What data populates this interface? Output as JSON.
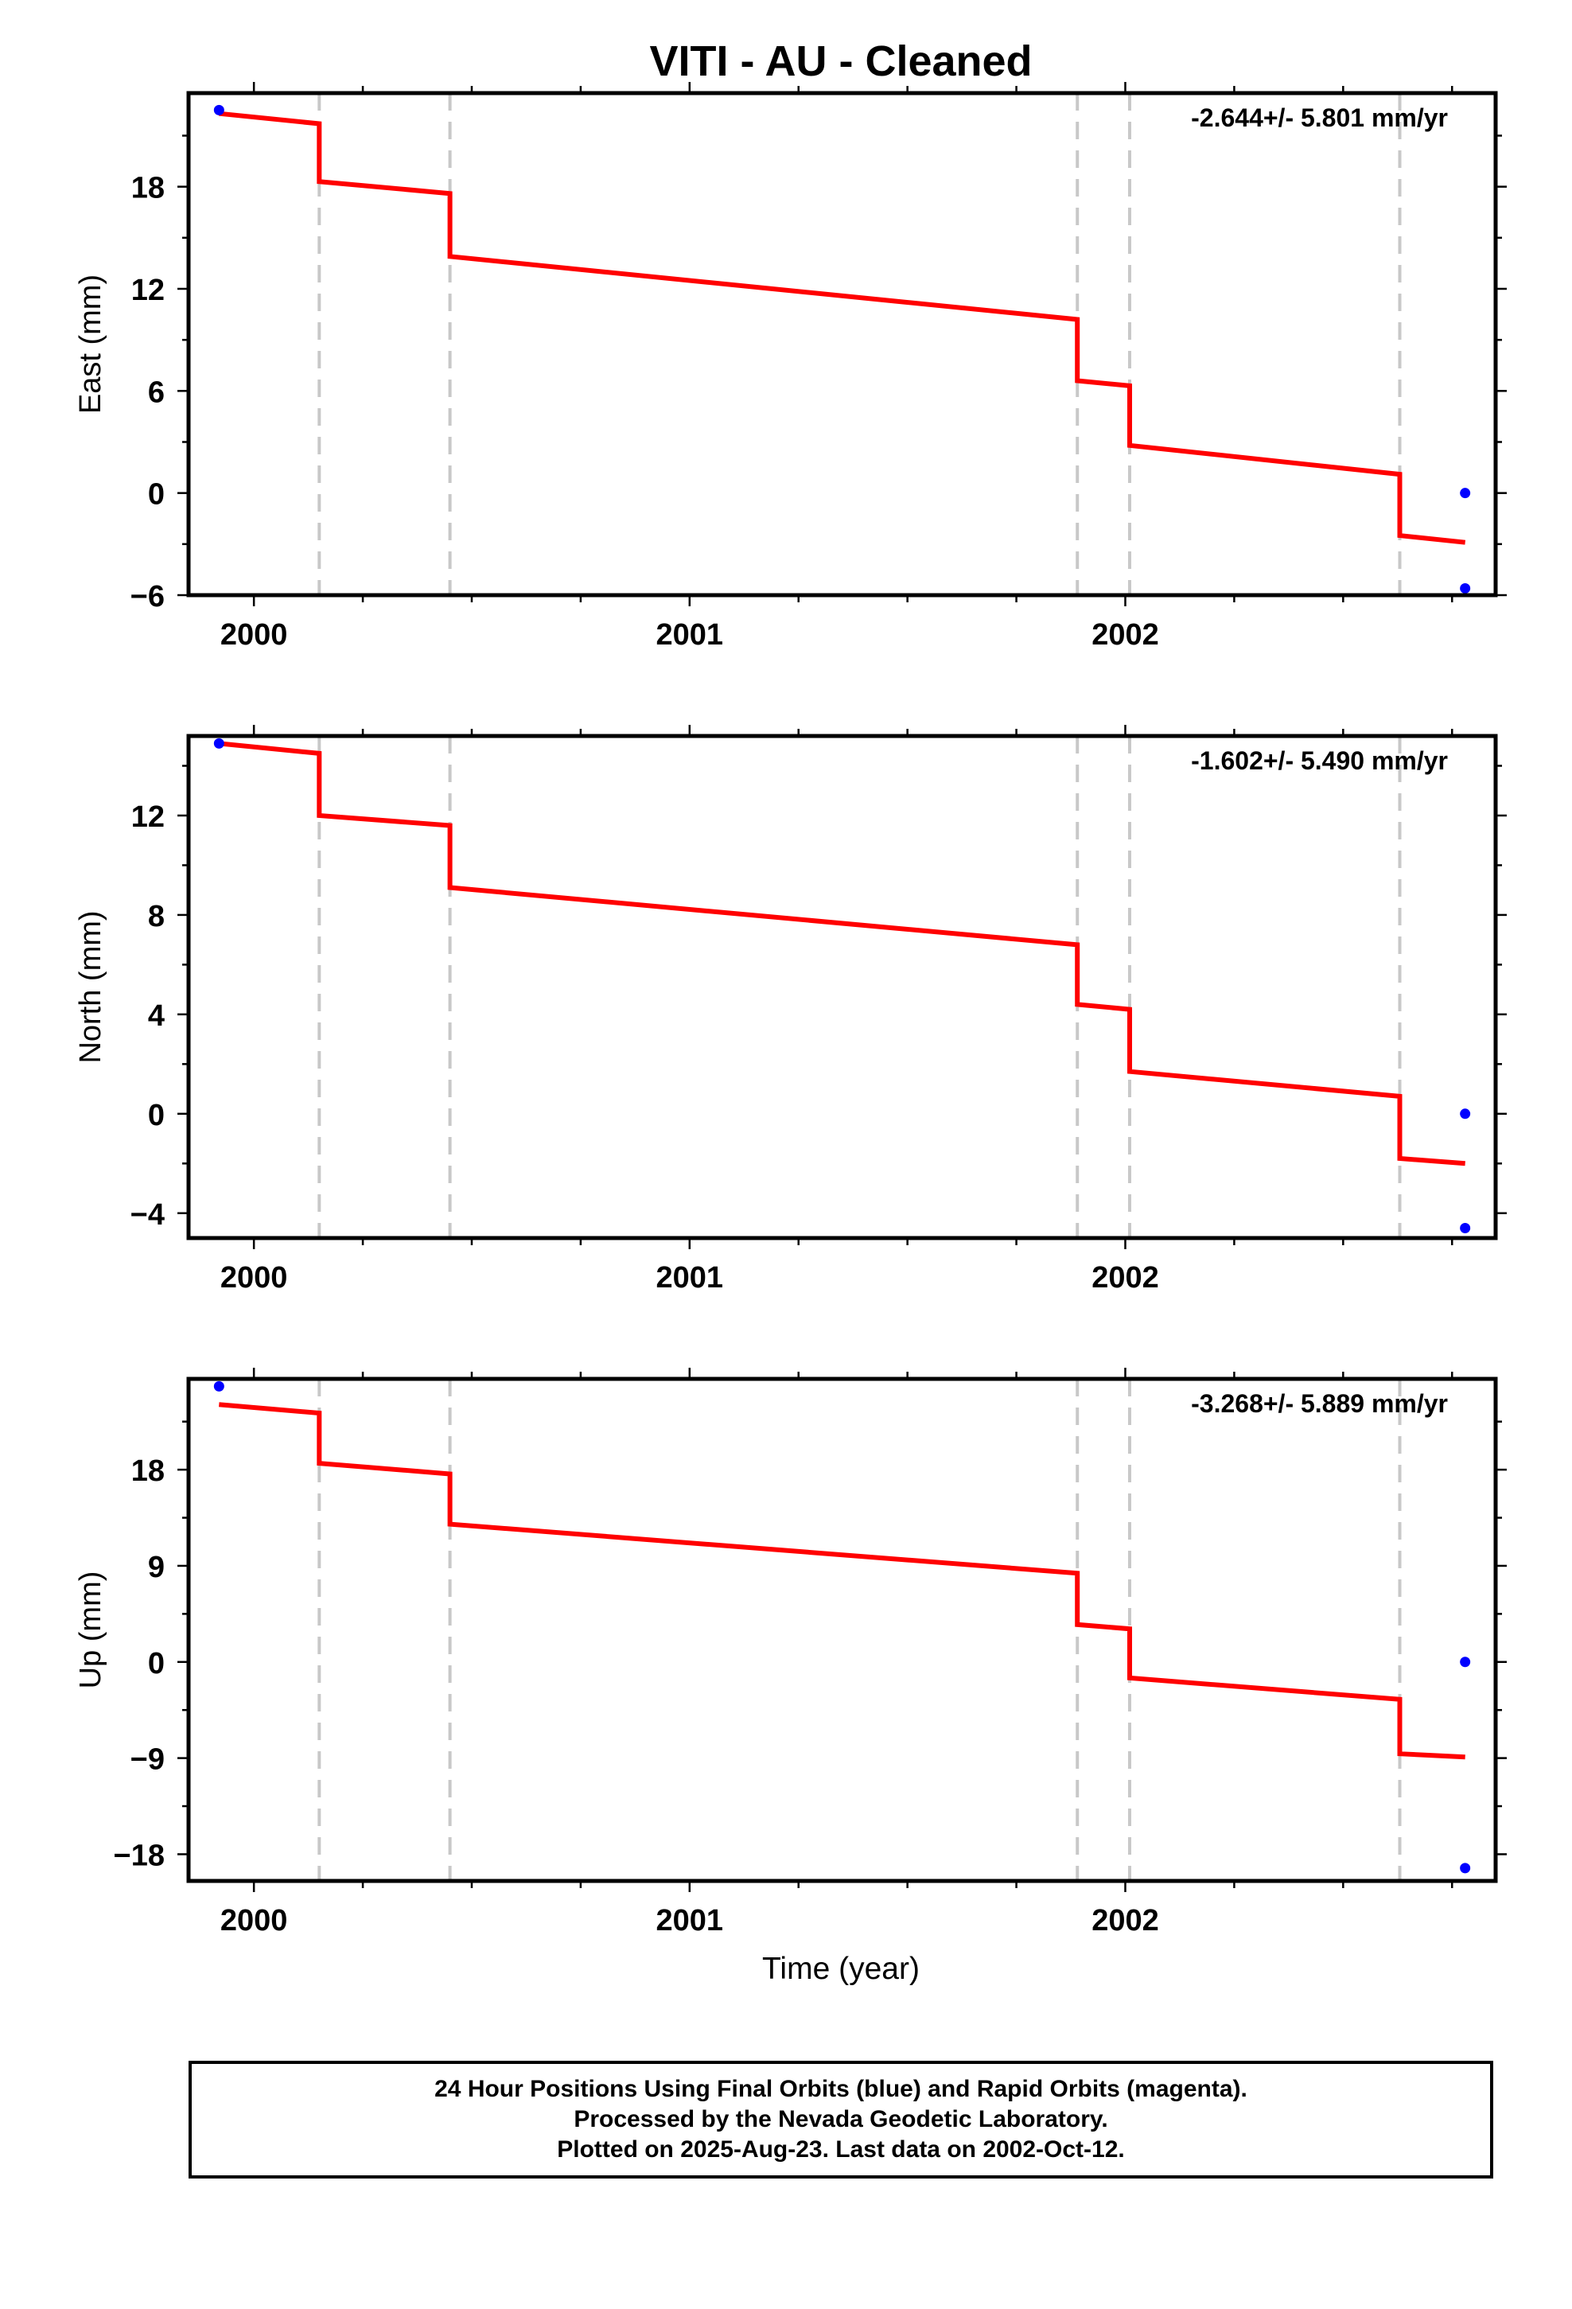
{
  "title": "VITI  - AU - Cleaned",
  "xlabel": "Time (year)",
  "colors": {
    "model": "#ff0000",
    "final_orbit": "#0000ff",
    "breaks": "#c8c8c8",
    "frame": "#000000"
  },
  "chart_data": [
    {
      "type": "line",
      "ylabel": "East (mm)",
      "rate_label": "-2.644+/- 5.801 mm/yr",
      "xlim": [
        1999.85,
        2002.85
      ],
      "ylim": [
        -6,
        23.5
      ],
      "yticks": [
        -6,
        0,
        6,
        12,
        18
      ],
      "ytick_labels": [
        "−6",
        "0",
        "6",
        "12",
        "18"
      ],
      "xticks": [
        2000,
        2001,
        2002
      ],
      "xtick_labels": [
        "2000",
        "2001",
        "2002"
      ],
      "breaks": [
        2000.15,
        2000.45,
        2001.89,
        2002.01,
        2002.63
      ],
      "model_line": [
        {
          "x": [
            1999.92,
            2000.15
          ],
          "y": [
            22.3,
            21.7
          ]
        },
        {
          "x": [
            2000.15,
            2000.45
          ],
          "y": [
            18.3,
            17.6
          ]
        },
        {
          "x": [
            2000.45,
            2001.89
          ],
          "y": [
            13.9,
            10.2
          ]
        },
        {
          "x": [
            2001.89,
            2002.01
          ],
          "y": [
            6.6,
            6.3
          ]
        },
        {
          "x": [
            2002.01,
            2002.63
          ],
          "y": [
            2.8,
            1.1
          ]
        },
        {
          "x": [
            2002.63,
            2002.78
          ],
          "y": [
            -2.5,
            -2.9
          ]
        }
      ],
      "points": [
        {
          "x": 1999.92,
          "y": 22.5
        },
        {
          "x": 2002.78,
          "y": 0.0
        },
        {
          "x": 2002.78,
          "y": -5.6
        }
      ]
    },
    {
      "type": "line",
      "ylabel": "North (mm)",
      "rate_label": "-1.602+/- 5.490 mm/yr",
      "xlim": [
        1999.85,
        2002.85
      ],
      "ylim": [
        -5,
        15.2
      ],
      "yticks": [
        -4,
        0,
        4,
        8,
        12
      ],
      "ytick_labels": [
        "−4",
        "0",
        "4",
        "8",
        "12"
      ],
      "xticks": [
        2000,
        2001,
        2002
      ],
      "xtick_labels": [
        "2000",
        "2001",
        "2002"
      ],
      "breaks": [
        2000.15,
        2000.45,
        2001.89,
        2002.01,
        2002.63
      ],
      "model_line": [
        {
          "x": [
            1999.92,
            2000.15
          ],
          "y": [
            14.9,
            14.5
          ]
        },
        {
          "x": [
            2000.15,
            2000.45
          ],
          "y": [
            12.0,
            11.6
          ]
        },
        {
          "x": [
            2000.45,
            2001.89
          ],
          "y": [
            9.1,
            6.8
          ]
        },
        {
          "x": [
            2001.89,
            2002.01
          ],
          "y": [
            4.4,
            4.2
          ]
        },
        {
          "x": [
            2002.01,
            2002.63
          ],
          "y": [
            1.7,
            0.7
          ]
        },
        {
          "x": [
            2002.63,
            2002.78
          ],
          "y": [
            -1.8,
            -2.0
          ]
        }
      ],
      "points": [
        {
          "x": 1999.92,
          "y": 14.9
        },
        {
          "x": 2002.78,
          "y": 0.0
        },
        {
          "x": 2002.78,
          "y": -4.6
        }
      ]
    },
    {
      "type": "line",
      "ylabel": "Up (mm)",
      "rate_label": "-3.268+/- 5.889 mm/yr",
      "xlim": [
        1999.85,
        2002.85
      ],
      "ylim": [
        -20.5,
        26.5
      ],
      "yticks": [
        -18,
        -9,
        0,
        9,
        18
      ],
      "ytick_labels": [
        "−18",
        "−9",
        "0",
        "9",
        "18"
      ],
      "xticks": [
        2000,
        2001,
        2002
      ],
      "xtick_labels": [
        "2000",
        "2001",
        "2002"
      ],
      "breaks": [
        2000.15,
        2000.45,
        2001.89,
        2002.01,
        2002.63
      ],
      "model_line": [
        {
          "x": [
            1999.92,
            2000.15
          ],
          "y": [
            24.1,
            23.3
          ]
        },
        {
          "x": [
            2000.15,
            2000.45
          ],
          "y": [
            18.6,
            17.6
          ]
        },
        {
          "x": [
            2000.45,
            2001.89
          ],
          "y": [
            12.9,
            8.3
          ]
        },
        {
          "x": [
            2001.89,
            2002.01
          ],
          "y": [
            3.5,
            3.1
          ]
        },
        {
          "x": [
            2002.01,
            2002.63
          ],
          "y": [
            -1.5,
            -3.5
          ]
        },
        {
          "x": [
            2002.63,
            2002.78
          ],
          "y": [
            -8.6,
            -8.9
          ]
        }
      ],
      "points": [
        {
          "x": 1999.92,
          "y": 25.8
        },
        {
          "x": 2002.78,
          "y": 0.0
        },
        {
          "x": 2002.78,
          "y": -19.3
        }
      ]
    }
  ],
  "footer": {
    "line1": "24 Hour Positions Using Final Orbits (blue) and Rapid Orbits (magenta).",
    "line2": "Processed by the Nevada Geodetic Laboratory.",
    "line3": "Plotted on 2025-Aug-23. Last data on 2002-Oct-12."
  }
}
